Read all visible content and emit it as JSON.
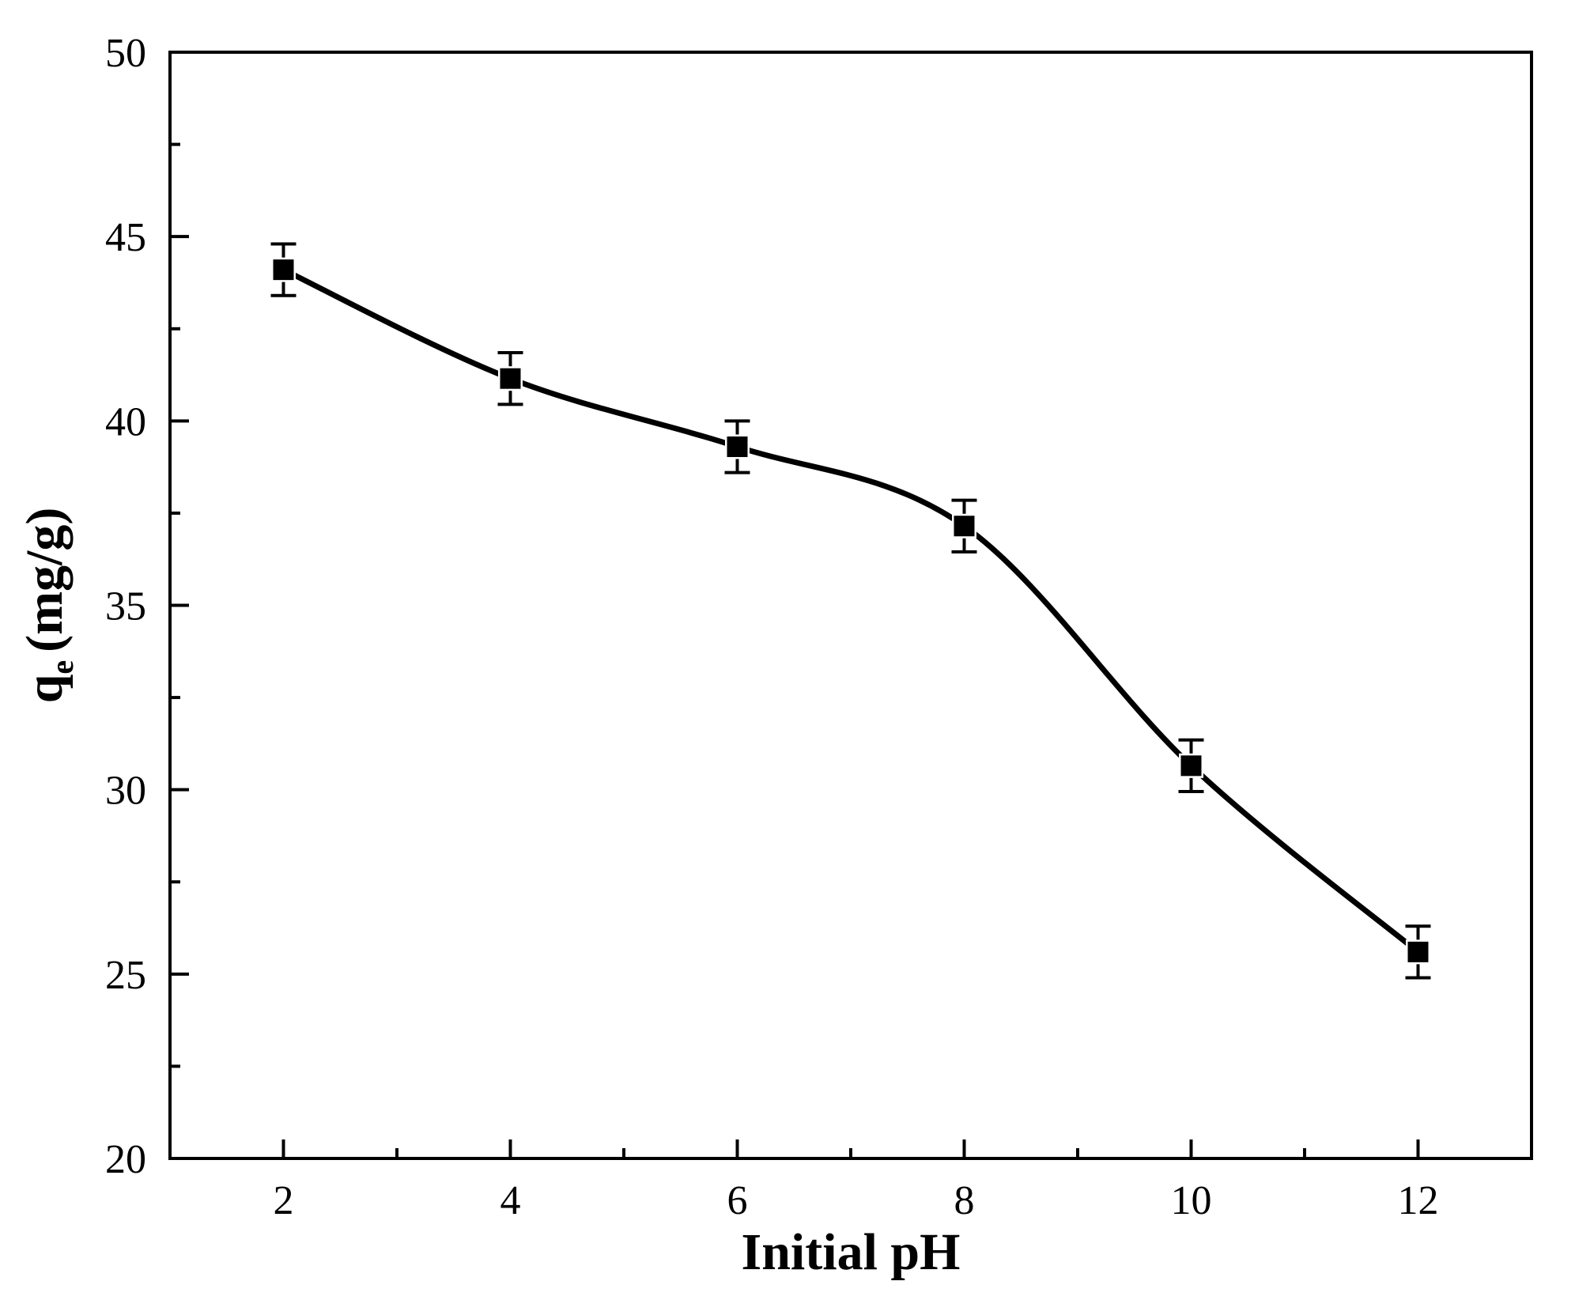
{
  "chart_data": {
    "type": "line",
    "xlabel": "Initial pH",
    "ylabel": "q",
    "ylabel_subscript": "e",
    "ylabel_unit": "(mg/g)",
    "xlim": [
      1,
      13
    ],
    "ylim": [
      20,
      50
    ],
    "x_ticks": [
      2,
      4,
      6,
      8,
      10,
      12
    ],
    "x_minor_ticks": [
      3,
      5,
      7,
      9,
      11
    ],
    "y_ticks": [
      20,
      25,
      30,
      35,
      40,
      45,
      50
    ],
    "y_minor_ticks": [
      22.5,
      27.5,
      32.5,
      37.5,
      42.5,
      47.5
    ],
    "grid": false,
    "marker": "square",
    "line_style": "smooth",
    "series_color": "#000000",
    "series": [
      {
        "x": [
          2,
          4,
          6,
          8,
          10,
          12
        ],
        "y": [
          44.1,
          41.15,
          39.3,
          37.15,
          30.65,
          25.6
        ],
        "error": [
          0.7,
          0.7,
          0.7,
          0.7,
          0.7,
          0.7
        ]
      }
    ]
  }
}
